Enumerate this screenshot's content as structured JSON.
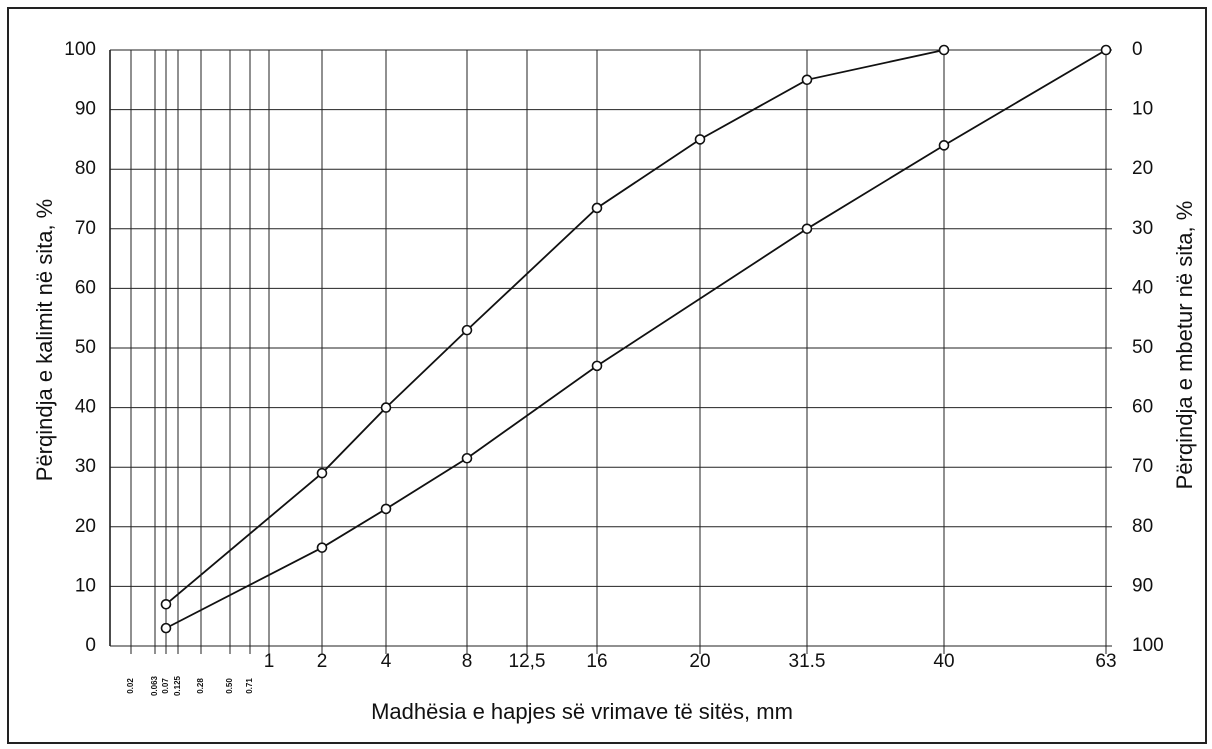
{
  "chart_data": {
    "type": "line",
    "xlabel": "Madhësia e hapjes së vrimave të sitës, mm",
    "ylabel": "Përqindja e kalimit në sita, %",
    "y2label": "Përqindja e mbetur në sita, %",
    "xticks": [
      0.02,
      0.063,
      0.07,
      0.125,
      0.28,
      {
        "value": 0.5,
        "label": "0.50"
      },
      0.71,
      1,
      2,
      4,
      8,
      {
        "value": 12.5,
        "label": "12,5"
      },
      16,
      20,
      31.5,
      40,
      63
    ],
    "ylim": [
      0,
      100
    ],
    "yticks": [
      0,
      10,
      20,
      30,
      40,
      50,
      60,
      70,
      80,
      90,
      100
    ],
    "y2lim": [
      100,
      0
    ],
    "y2ticks": [
      0,
      10,
      20,
      30,
      40,
      50,
      60,
      70,
      80,
      90,
      100
    ],
    "grid": true,
    "series": [
      {
        "color": "#111111",
        "x": [
          0.07,
          2,
          4,
          8,
          16,
          20,
          31.5,
          40
        ],
        "values": [
          7,
          29,
          40,
          53,
          73.5,
          85,
          95,
          100
        ]
      },
      {
        "color": "#111111",
        "x": [
          0.07,
          2,
          4,
          8,
          16,
          31.5,
          40,
          63
        ],
        "values": [
          3,
          16.5,
          23,
          31.5,
          47,
          70,
          84,
          100
        ]
      }
    ]
  }
}
